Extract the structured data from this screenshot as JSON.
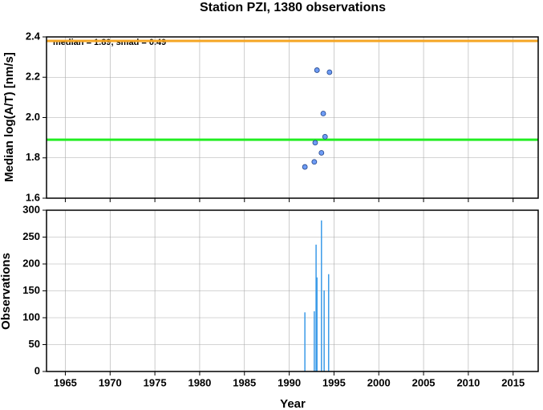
{
  "chart_data": [
    {
      "type": "scatter",
      "title": "Station PZI, 1380 observations",
      "ylabel": "Median log(A/T) [nm/s]",
      "annotation": "median = 1.89, smad = 0.49",
      "x": [
        1991.75,
        1992.8,
        1992.9,
        1993.1,
        1993.6,
        1993.8,
        1994.0,
        1994.5
      ],
      "values": [
        1.755,
        1.78,
        1.875,
        2.235,
        1.825,
        2.02,
        1.905,
        2.225
      ],
      "color": "#6e9cf5",
      "hlines": [
        {
          "value": 2.38,
          "color": "#f5a623"
        },
        {
          "value": 1.89,
          "color": "#22ee22"
        }
      ],
      "xlim": [
        1962.9,
        2017.8
      ],
      "xticks": [
        1965,
        1970,
        1975,
        1980,
        1985,
        1990,
        1995,
        2000,
        2005,
        2010,
        2015
      ],
      "show_xtick_labels": false,
      "ylim": [
        1.6,
        2.4
      ],
      "yticks": [
        {
          "value": 1.6,
          "label": "1.6"
        },
        {
          "value": 1.8,
          "label": "1.8"
        },
        {
          "value": 2.0,
          "label": "2.0"
        },
        {
          "value": 2.2,
          "label": "2.2"
        },
        {
          "value": 2.4,
          "label": "2.4"
        }
      ],
      "grid": true
    },
    {
      "type": "bar",
      "xlabel": "Year",
      "ylabel": "Observations",
      "x": [
        1991.75,
        1992.8,
        1993.0,
        1993.1,
        1993.6,
        1993.9,
        1994.4
      ],
      "values": [
        110,
        112,
        236,
        175,
        281,
        151,
        181
      ],
      "color": "#3b9be8",
      "xlim": [
        1962.9,
        2017.8
      ],
      "xticks": [
        1965,
        1970,
        1975,
        1980,
        1985,
        1990,
        1995,
        2000,
        2005,
        2010,
        2015
      ],
      "show_xtick_labels": true,
      "ylim": [
        0,
        300
      ],
      "yticks": [
        0,
        50,
        100,
        150,
        200,
        250,
        300
      ],
      "grid": true
    }
  ]
}
